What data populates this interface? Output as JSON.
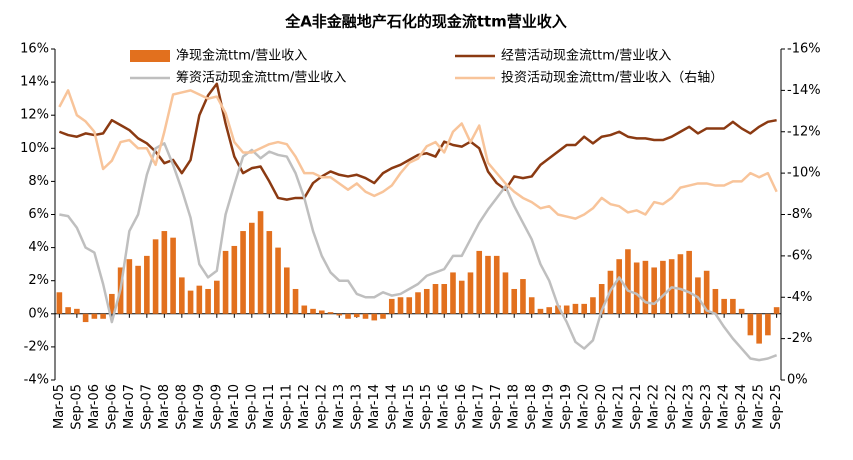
{
  "chart_data": {
    "type": "combo",
    "title": "全A非金融地产石化的现金流ttm营业收入",
    "categories": [
      "Mar-05",
      null,
      "Sep-05",
      null,
      "Mar-06",
      null,
      "Sep-06",
      null,
      "Mar-07",
      null,
      "Sep-07",
      null,
      "Mar-08",
      null,
      "Sep-08",
      null,
      "Mar-09",
      null,
      "Sep-09",
      null,
      "Mar-10",
      null,
      "Sep-10",
      null,
      "Mar-11",
      null,
      "Sep-11",
      null,
      "Mar-12",
      null,
      "Sep-12",
      null,
      "Mar-13",
      null,
      "Sep-13",
      null,
      "Mar-14",
      null,
      "Sep-14",
      null,
      "Mar-15",
      null,
      "Sep-15",
      null,
      "Mar-16",
      null,
      "Sep-16",
      null,
      "Mar-17",
      null,
      "Sep-17",
      null,
      "Mar-18",
      null,
      "Sep-18",
      null,
      "Mar-19",
      null,
      "Sep-19",
      null,
      "Mar-20",
      null,
      "Sep-20",
      null,
      "Mar-21",
      null,
      "Sep-21",
      null,
      "Mar-22",
      null,
      "Sep-22",
      null,
      "Mar-23",
      null,
      "Sep-23",
      null,
      "Mar-24",
      null,
      "Sep-24",
      null,
      "Mar-25",
      null,
      "Sep-25"
    ],
    "ylim": [
      -4,
      16
    ],
    "yticks": [
      {
        "value": -4,
        "label": "-4%"
      },
      {
        "value": -2,
        "label": "-2%"
      },
      {
        "value": 0,
        "label": "0%"
      },
      {
        "value": 2,
        "label": "2%"
      },
      {
        "value": 4,
        "label": "4%"
      },
      {
        "value": 6,
        "label": "6%"
      },
      {
        "value": 8,
        "label": "8%"
      },
      {
        "value": 10,
        "label": "10%"
      },
      {
        "value": 12,
        "label": "12%"
      },
      {
        "value": 14,
        "label": "14%"
      },
      {
        "value": 16,
        "label": "16%"
      }
    ],
    "y2lim": [
      0,
      -16
    ],
    "y2ticks": [
      {
        "value": 0,
        "label": "0%"
      },
      {
        "value": -2,
        "label": "-2%"
      },
      {
        "value": -4,
        "label": "-4%"
      },
      {
        "value": -6,
        "label": "-6%"
      },
      {
        "value": -8,
        "label": "-8%"
      },
      {
        "value": -10,
        "label": "-10%"
      },
      {
        "value": -12,
        "label": "-12%"
      },
      {
        "value": -14,
        "label": "-14%"
      },
      {
        "value": -16,
        "label": "-16%"
      }
    ],
    "series": [
      {
        "name": "净现金流ttm/营业收入",
        "type": "bar",
        "color": "#E2701E",
        "values": [
          1.3,
          0.4,
          0.3,
          -0.5,
          -0.3,
          -0.3,
          1.2,
          2.8,
          3.3,
          2.9,
          3.5,
          4.5,
          5.0,
          4.6,
          2.2,
          1.4,
          1.7,
          1.5,
          2.0,
          3.8,
          4.1,
          5.0,
          5.5,
          6.2,
          5.0,
          4.0,
          2.8,
          1.5,
          0.5,
          0.3,
          0.2,
          0.1,
          -0.1,
          -0.3,
          -0.2,
          -0.3,
          -0.4,
          -0.3,
          0.9,
          1.0,
          1.0,
          1.3,
          1.5,
          1.8,
          1.8,
          2.5,
          2.0,
          2.5,
          3.8,
          3.5,
          3.5,
          2.5,
          1.5,
          2.1,
          1.0,
          0.3,
          0.4,
          0.5,
          0.5,
          0.6,
          0.6,
          1.0,
          1.8,
          2.6,
          3.3,
          3.9,
          3.1,
          3.2,
          2.8,
          3.2,
          3.3,
          3.6,
          3.8,
          2.2,
          2.6,
          1.5,
          0.9,
          0.9,
          0.3,
          -1.3,
          -1.8,
          -1.3,
          0.4
        ]
      },
      {
        "name": "经营活动现金流ttm/营业收入",
        "type": "line",
        "color": "#8B3A12",
        "values": [
          11.0,
          10.8,
          10.7,
          10.9,
          10.8,
          10.9,
          11.7,
          11.4,
          11.1,
          10.6,
          10.3,
          9.8,
          9.1,
          9.3,
          8.5,
          9.3,
          12.0,
          13.2,
          13.9,
          11.5,
          9.5,
          8.5,
          8.8,
          8.9,
          8.0,
          7.0,
          6.9,
          7.0,
          7.0,
          7.9,
          8.3,
          8.6,
          8.4,
          8.3,
          8.4,
          8.2,
          7.9,
          8.5,
          8.8,
          9.0,
          9.3,
          9.6,
          9.7,
          9.5,
          10.4,
          10.2,
          10.1,
          10.4,
          10.0,
          8.6,
          7.9,
          7.5,
          8.3,
          8.2,
          8.3,
          9.0,
          9.4,
          9.8,
          10.2,
          10.2,
          10.7,
          10.3,
          10.7,
          10.8,
          11.0,
          10.7,
          10.6,
          10.6,
          10.5,
          10.5,
          10.7,
          11.0,
          11.3,
          10.9,
          11.2,
          11.2,
          11.2,
          11.6,
          11.2,
          10.9,
          11.3,
          11.6,
          11.7
        ]
      },
      {
        "name": "筹资活动现金流ttm/营业收入",
        "type": "line",
        "color": "#BFBFBF",
        "values": [
          6.0,
          5.9,
          5.2,
          4.0,
          3.7,
          1.8,
          -0.5,
          1.5,
          5.0,
          6.0,
          8.4,
          10.0,
          10.3,
          9.0,
          7.5,
          5.8,
          3.0,
          2.2,
          2.6,
          6.0,
          7.8,
          9.5,
          9.9,
          9.4,
          9.8,
          9.6,
          9.5,
          8.5,
          7.0,
          5.0,
          3.5,
          2.5,
          2.0,
          2.0,
          1.2,
          1.0,
          1.0,
          1.3,
          1.1,
          1.2,
          1.5,
          1.8,
          2.3,
          2.5,
          2.7,
          3.5,
          3.5,
          4.5,
          5.5,
          6.3,
          7.0,
          7.7,
          6.5,
          5.5,
          4.5,
          3.0,
          2.0,
          0.5,
          -0.5,
          -1.7,
          -2.1,
          -1.6,
          0.2,
          1.4,
          2.2,
          1.4,
          1.2,
          0.7,
          0.6,
          1.1,
          1.6,
          1.5,
          1.3,
          1.0,
          0.2,
          0,
          -0.8,
          -1.5,
          -2.1,
          -2.7,
          -2.8,
          -2.7,
          -2.5
        ]
      },
      {
        "name": "投资活动现金流ttm/营业收入（右轴）",
        "type": "line",
        "axis": "y2",
        "color": "#F8C49A",
        "values": [
          -13.2,
          -14.0,
          -12.8,
          -12.5,
          -12.0,
          -10.2,
          -10.6,
          -11.5,
          -11.6,
          -11.2,
          -11.2,
          -10.4,
          -12.0,
          -13.8,
          -13.9,
          -14.0,
          -13.8,
          -13.6,
          -13.7,
          -12.9,
          -11.5,
          -11.0,
          -11.0,
          -11.2,
          -11.4,
          -11.5,
          -11.4,
          -10.8,
          -10.0,
          -10.0,
          -9.8,
          -9.8,
          -9.5,
          -9.2,
          -9.5,
          -9.1,
          -8.9,
          -9.1,
          -9.4,
          -10.0,
          -10.5,
          -10.7,
          -11.3,
          -11.5,
          -11.0,
          -12.0,
          -12.4,
          -11.5,
          -12.3,
          -10.5,
          -10.0,
          -9.5,
          -9.1,
          -8.8,
          -8.6,
          -8.3,
          -8.4,
          -8.0,
          -7.9,
          -7.8,
          -8.0,
          -8.3,
          -8.8,
          -8.5,
          -8.4,
          -8.1,
          -8.2,
          -8.0,
          -8.6,
          -8.5,
          -8.8,
          -9.3,
          -9.4,
          -9.5,
          -9.5,
          -9.4,
          -9.4,
          -9.6,
          -9.6,
          -10.0,
          -9.8,
          -10.0,
          -9.1
        ]
      }
    ]
  }
}
